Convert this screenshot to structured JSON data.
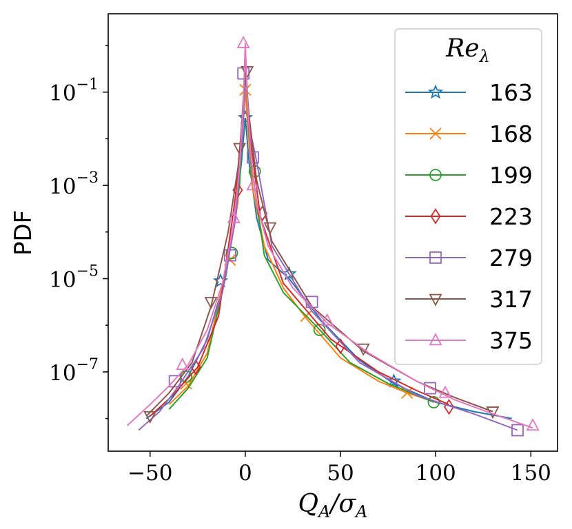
{
  "chart_data": {
    "type": "line",
    "title": "",
    "xlabel": "Q_A/σ_A",
    "xlabel_main": "Q",
    "xlabel_sub": "A",
    "xlabel_slash": "/σ",
    "xlabel_sub2": "A",
    "ylabel": "PDF",
    "xlim": [
      -72,
      164
    ],
    "ylog_lim": [
      -8.7,
      0.68
    ],
    "yscale": "log",
    "x_ticks": [
      -50,
      0,
      50,
      100,
      150
    ],
    "x_tick_labels": [
      "−50",
      "0",
      "50",
      "100",
      "150"
    ],
    "y_ticks": [
      -7,
      -5,
      -3,
      -1
    ],
    "y_tick_base": "10",
    "y_tick_exponents": [
      "−7",
      "−5",
      "−3",
      "−1"
    ],
    "legend_position": "top-right",
    "legend_title_main": "Re",
    "legend_title_sub": "λ",
    "series": [
      {
        "name": "163",
        "color": "#1f77b4",
        "marker": "star",
        "x": [
          -52,
          -40,
          -30,
          -20,
          -12,
          -6,
          -2,
          0,
          2,
          6,
          12,
          23,
          40,
          60,
          78,
          100,
          120,
          140
        ],
        "log10y": [
          -8.0,
          -7.65,
          -7.1,
          -6.3,
          -5.2,
          -3.9,
          -2.5,
          -1.55,
          -2.5,
          -3.7,
          -4.6,
          -5.0,
          -5.9,
          -6.75,
          -7.25,
          -7.65,
          -7.85,
          -8.0
        ],
        "markers": [
          [
            -13,
            -5.05
          ],
          [
            0,
            -1.55
          ],
          [
            23,
            -4.9
          ],
          [
            78,
            -7.2
          ]
        ]
      },
      {
        "name": "168",
        "color": "#ff7f0e",
        "marker": "x",
        "x": [
          -40,
          -30,
          -20,
          -10,
          -4,
          -1,
          0,
          1,
          4,
          10,
          20,
          32,
          50,
          70,
          85,
          100
        ],
        "log10y": [
          -7.7,
          -7.3,
          -6.6,
          -4.8,
          -3.4,
          -1.6,
          -0.95,
          -1.6,
          -3.1,
          -4.3,
          -5.2,
          -5.85,
          -6.7,
          -7.2,
          -7.45,
          -7.65
        ],
        "markers": [
          [
            -31,
            -7.25
          ],
          [
            -8,
            -4.6
          ],
          [
            0,
            -0.95
          ],
          [
            32,
            -5.8
          ],
          [
            85,
            -7.45
          ]
        ]
      },
      {
        "name": "199",
        "color": "#2ca02c",
        "marker": "circle",
        "x": [
          -40,
          -30,
          -20,
          -10,
          -3,
          0,
          3,
          10,
          20,
          38,
          55,
          75,
          99
        ],
        "log10y": [
          -7.8,
          -7.35,
          -6.7,
          -4.9,
          -3.0,
          -0.55,
          -2.5,
          -4.5,
          -5.3,
          -6.05,
          -6.8,
          -7.25,
          -7.65
        ],
        "markers": [
          [
            -31,
            -7.1
          ],
          [
            -7,
            -4.45
          ],
          [
            5,
            -2.7
          ],
          [
            39,
            -6.1
          ],
          [
            99,
            -7.65
          ]
        ]
      },
      {
        "name": "223",
        "color": "#d62728",
        "marker": "diamond",
        "x": [
          -50,
          -38,
          -25,
          -14,
          -5,
          -1,
          0,
          2,
          8,
          20,
          45,
          70,
          90,
          107
        ],
        "log10y": [
          -7.95,
          -7.5,
          -6.9,
          -5.8,
          -3.2,
          -1.3,
          -0.1,
          -1.8,
          -3.7,
          -5.1,
          -6.3,
          -7.0,
          -7.4,
          -7.7
        ],
        "markers": [
          [
            -26,
            -6.9
          ],
          [
            -4,
            -3.1
          ],
          [
            9,
            -3.6
          ],
          [
            50,
            -6.45
          ],
          [
            107,
            -7.75
          ]
        ]
      },
      {
        "name": "279",
        "color": "#9467bd",
        "marker": "square",
        "x": [
          -56,
          -45,
          -35,
          -22,
          -12,
          -5,
          -1,
          0,
          2,
          6,
          14,
          35,
          60,
          90,
          120,
          143
        ],
        "log10y": [
          -8.25,
          -7.85,
          -7.3,
          -6.5,
          -5.3,
          -3.7,
          -1.6,
          -0.6,
          -1.7,
          -2.5,
          -4.3,
          -5.7,
          -6.8,
          -7.5,
          -7.9,
          -8.25
        ],
        "markers": [
          [
            -37,
            -7.2
          ],
          [
            -8,
            -4.5
          ],
          [
            -1,
            -0.6
          ],
          [
            4,
            -2.4
          ],
          [
            35,
            -5.5
          ],
          [
            97,
            -7.35
          ],
          [
            143,
            -8.25
          ]
        ]
      },
      {
        "name": "317",
        "color": "#8c564b",
        "marker": "triangle-down",
        "x": [
          -52,
          -40,
          -28,
          -18,
          -9,
          -3,
          -1,
          0,
          2,
          6,
          14,
          35,
          62,
          90,
          110,
          130
        ],
        "log10y": [
          -7.95,
          -7.45,
          -6.8,
          -5.6,
          -4.0,
          -2.4,
          -1.1,
          -0.55,
          -1.5,
          -2.9,
          -4.2,
          -5.6,
          -6.55,
          -7.2,
          -7.55,
          -7.85
        ],
        "markers": [
          [
            -50,
            -7.95
          ],
          [
            -18,
            -5.5
          ],
          [
            -3,
            -2.2
          ],
          [
            1,
            -0.55
          ],
          [
            13,
            -3.9
          ],
          [
            62,
            -6.5
          ],
          [
            130,
            -7.85
          ]
        ]
      },
      {
        "name": "375",
        "color": "#e377c2",
        "marker": "triangle-up",
        "x": [
          -62,
          -50,
          -40,
          -30,
          -20,
          -12,
          -6,
          -3,
          -1,
          0,
          1,
          3,
          6,
          12,
          25,
          43,
          65,
          90,
          110,
          130,
          151
        ],
        "log10y": [
          -8.15,
          -7.7,
          -7.3,
          -6.85,
          -6.1,
          -5.1,
          -3.8,
          -2.6,
          -1.2,
          0.05,
          -1.1,
          -2.4,
          -3.4,
          -4.3,
          -5.2,
          -5.95,
          -6.6,
          -7.2,
          -7.6,
          -7.9,
          -8.2
        ],
        "markers": [
          [
            -33,
            -6.85
          ],
          [
            -6,
            -3.7
          ],
          [
            -1,
            0.05
          ],
          [
            4,
            -3.0
          ],
          [
            43,
            -5.9
          ],
          [
            105,
            -7.45
          ],
          [
            151,
            -8.15
          ]
        ]
      }
    ]
  }
}
